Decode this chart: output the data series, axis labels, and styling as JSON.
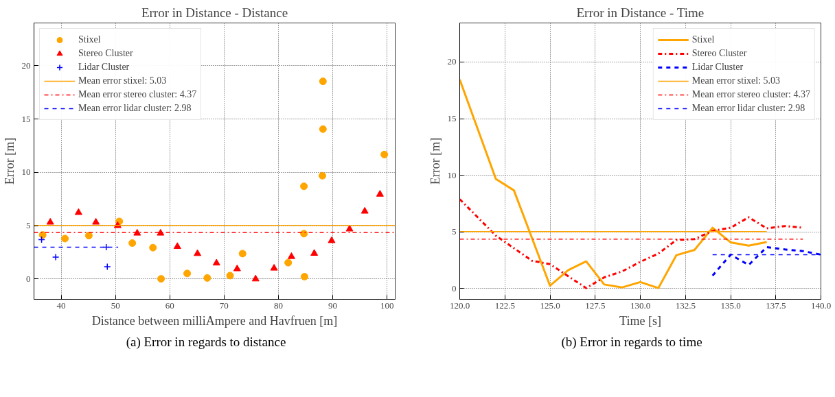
{
  "chart_data": [
    {
      "type": "scatter",
      "title": "Error in Distance - Distance",
      "xlabel": "Distance between milliAmpere and Havfruen [m]",
      "ylabel": "Error [m]",
      "xlim": [
        35,
        101.5
      ],
      "ylim": [
        -1.9,
        24
      ],
      "xticks": [
        40,
        50,
        60,
        70,
        80,
        90,
        100
      ],
      "yticks": [
        0,
        5,
        10,
        15,
        20
      ],
      "grid": true,
      "legend": "top left",
      "annotations": [
        "(a) Error in regards to distance"
      ],
      "series": [
        {
          "name": "Stixel",
          "type": "scatter",
          "marker": "circle",
          "color": "#ffa500",
          "x": [
            36.6,
            40.7,
            45.1,
            50.7,
            53.1,
            56.9,
            58.4,
            63.2,
            66.9,
            71.1,
            73.4,
            81.8,
            84.7,
            84.7,
            84.8,
            88.1,
            88.2,
            88.2,
            99.5
          ],
          "values": [
            4.13,
            3.79,
            4.07,
            5.4,
            3.37,
            2.94,
            0.02,
            0.52,
            0.1,
            0.32,
            2.38,
            1.53,
            8.69,
            4.25,
            0.22,
            9.68,
            14.05,
            18.53,
            11.67
          ]
        },
        {
          "name": "Stereo Cluster",
          "type": "scatter",
          "marker": "triangle",
          "color": "#ff0000",
          "x": [
            38.0,
            43.2,
            46.4,
            50.4,
            54.0,
            58.3,
            61.4,
            65.1,
            68.6,
            72.4,
            75.8,
            79.2,
            82.4,
            86.6,
            89.8,
            93.1,
            95.9,
            98.7
          ],
          "values": [
            5.32,
            6.23,
            5.32,
            5.0,
            4.29,
            4.29,
            3.04,
            2.38,
            1.49,
            0.95,
            0.0,
            1.01,
            2.1,
            2.4,
            3.59,
            4.68,
            6.35,
            7.94
          ]
        },
        {
          "name": "Lidar Cluster",
          "type": "scatter",
          "marker": "cross",
          "color": "#0000ff",
          "x": [
            36.4,
            39.0,
            48.3,
            48.5
          ],
          "values": [
            3.69,
            2.06,
            2.98,
            1.15
          ]
        },
        {
          "name": "Mean error stixel: 5.03",
          "type": "line",
          "line_style": "solid",
          "color": "#ffa500",
          "x": [
            35,
            101.5
          ],
          "values": [
            5.03,
            5.03
          ]
        },
        {
          "name": "Mean error stereo cluster: 4.37",
          "type": "line",
          "line_style": "dashdot",
          "color": "#ff0000",
          "x": [
            35,
            101.5
          ],
          "values": [
            4.37,
            4.37
          ]
        },
        {
          "name": "Mean error lidar cluster: 2.98",
          "type": "line",
          "line_style": "dashed",
          "color": "#0000ff",
          "x": [
            35,
            50.5
          ],
          "values": [
            2.98,
            2.98
          ]
        }
      ]
    },
    {
      "type": "line",
      "title": "Error in Distance - Time",
      "xlabel": "Time [s]",
      "ylabel": "Error [m]",
      "xlim": [
        120,
        140
      ],
      "ylim": [
        -0.95,
        23.45
      ],
      "xticks": [
        {
          "value": 120,
          "label": "120.0"
        },
        {
          "value": 122.5,
          "label": "122.5"
        },
        {
          "value": 125,
          "label": "125.0"
        },
        {
          "value": 127.5,
          "label": "127.5"
        },
        {
          "value": 130,
          "label": "130.0"
        },
        {
          "value": 132.5,
          "label": "132.5"
        },
        {
          "value": 135,
          "label": "135.0"
        },
        {
          "value": 137.5,
          "label": "137.5"
        },
        {
          "value": 140,
          "label": "140.0"
        }
      ],
      "yticks": [
        0,
        5,
        10,
        15,
        20
      ],
      "grid": true,
      "legend": "top right",
      "annotations": [
        "(b) Error in regards to time"
      ],
      "series": [
        {
          "name": "Stixel",
          "line_style": "solid",
          "color": "#ffa500",
          "x": [
            120,
            122,
            123,
            125,
            126,
            127,
            128,
            129,
            130,
            131,
            132,
            133,
            134,
            135,
            136,
            137
          ],
          "values": [
            18.46,
            9.68,
            8.67,
            0.25,
            1.62,
            2.4,
            0.36,
            0.1,
            0.57,
            0.04,
            2.95,
            3.41,
            5.37,
            4.08,
            3.79,
            4.1
          ]
        },
        {
          "name": "Stereo Cluster",
          "line_style": "dashdot",
          "color": "#ff0000",
          "x": [
            120,
            122,
            124,
            125,
            127,
            128,
            129,
            130,
            131,
            132,
            133,
            134,
            135,
            136,
            137,
            138,
            139
          ],
          "values": [
            7.89,
            4.67,
            2.46,
            2.15,
            0.04,
            0.99,
            1.52,
            2.36,
            3.09,
            4.29,
            4.36,
            5.09,
            5.37,
            6.29,
            5.31,
            5.52,
            5.37
          ]
        },
        {
          "name": "Lidar Cluster",
          "line_style": "dashed",
          "color": "#0000ff",
          "x": [
            134,
            135,
            136,
            137,
            138,
            139,
            140
          ],
          "values": [
            1.14,
            2.99,
            2.08,
            3.66,
            3.45,
            3.31,
            2.99
          ]
        },
        {
          "name": "Mean error stixel: 5.03",
          "line_style": "solid",
          "color": "#ffa500",
          "x": [
            120,
            137
          ],
          "values": [
            5.03,
            5.03
          ]
        },
        {
          "name": "Mean error stereo cluster: 4.37",
          "line_style": "dashdot",
          "color": "#ff0000",
          "x": [
            120,
            139
          ],
          "values": [
            4.37,
            4.37
          ]
        },
        {
          "name": "Mean error lidar cluster: 2.98",
          "line_style": "dashed",
          "color": "#0000ff",
          "x": [
            134,
            140
          ],
          "values": [
            2.98,
            2.98
          ]
        }
      ]
    }
  ]
}
